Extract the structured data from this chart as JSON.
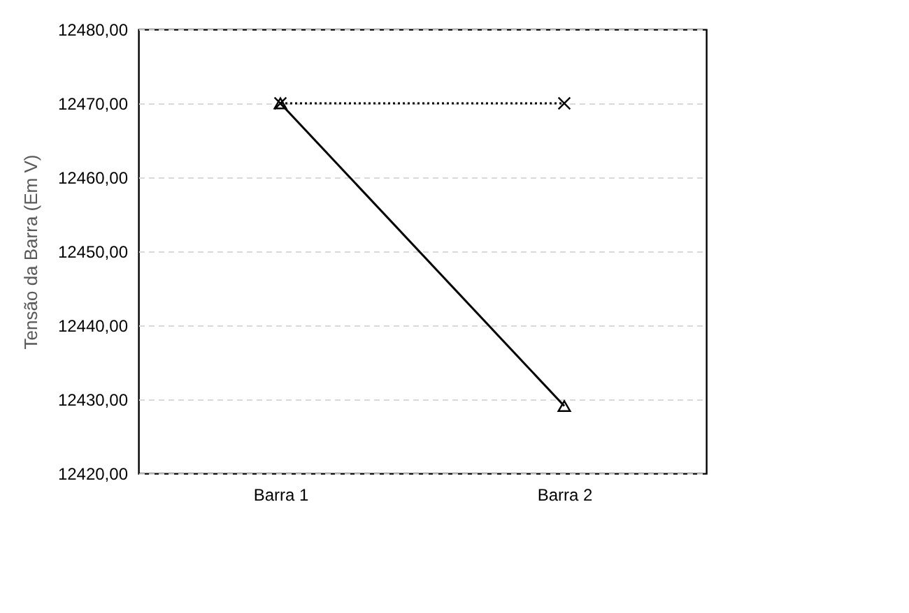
{
  "chart_data": {
    "type": "line",
    "ylabel": "Tensão da Barra (Em V)",
    "categories": [
      "Barra 1",
      "Barra 2"
    ],
    "series": [
      {
        "color": "#000000",
        "values": [
          12470,
          12470
        ],
        "marker": "cross",
        "line_style": "dotted"
      },
      {
        "color": "#000000",
        "values": [
          12470,
          12429.1
        ],
        "marker": "triangle",
        "line_style": "solid"
      }
    ],
    "ylim": [
      12420,
      12480
    ],
    "yticks": [
      {
        "value": 12420,
        "label": "12420,00"
      },
      {
        "value": 12430,
        "label": "12430,00"
      },
      {
        "value": 12440,
        "label": "12440,00"
      },
      {
        "value": 12450,
        "label": "12450,00"
      },
      {
        "value": 12460,
        "label": "12460,00"
      },
      {
        "value": 12470,
        "label": "12470,00"
      },
      {
        "value": 12480,
        "label": "12480,00"
      }
    ],
    "grid": "y",
    "legend": false
  }
}
